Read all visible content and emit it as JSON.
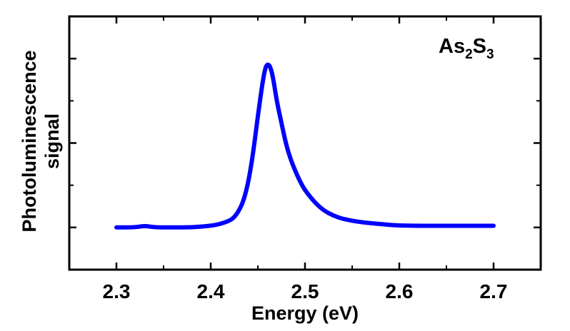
{
  "chart_data": {
    "type": "line",
    "title": "",
    "annotation": {
      "main1": "As",
      "sub1": "2",
      "main2": "S",
      "sub2": "3",
      "full": "As2S3"
    },
    "xlabel": "Energy (eV)",
    "ylabel_line1": "Photoluminescence",
    "ylabel_line2": "signal",
    "xlim": [
      2.25,
      2.75
    ],
    "ylim": [
      -0.25,
      1.25
    ],
    "x_ticks": [
      2.3,
      2.4,
      2.5,
      2.6,
      2.7
    ],
    "x_tick_labels": [
      "2.3",
      "2.4",
      "2.5",
      "2.6",
      "2.7"
    ],
    "y_tick_labels_shown": false,
    "grid": false,
    "legend": null,
    "series": [
      {
        "name": "As2S3 photoluminescence",
        "color": "#0000ff",
        "x": [
          2.3,
          2.32,
          2.33,
          2.34,
          2.36,
          2.38,
          2.4,
          2.41,
          2.42,
          2.425,
          2.43,
          2.435,
          2.44,
          2.445,
          2.45,
          2.455,
          2.458,
          2.461,
          2.464,
          2.467,
          2.47,
          2.475,
          2.48,
          2.485,
          2.49,
          2.495,
          2.5,
          2.51,
          2.52,
          2.53,
          2.54,
          2.56,
          2.58,
          2.6,
          2.65,
          2.7
        ],
        "y": [
          0.0,
          0.0,
          0.01,
          0.0,
          0.0,
          0.0,
          0.01,
          0.02,
          0.04,
          0.06,
          0.1,
          0.16,
          0.27,
          0.44,
          0.66,
          0.86,
          0.95,
          0.97,
          0.94,
          0.86,
          0.75,
          0.62,
          0.49,
          0.4,
          0.33,
          0.27,
          0.22,
          0.15,
          0.1,
          0.07,
          0.05,
          0.03,
          0.02,
          0.01,
          0.01,
          0.01
        ]
      }
    ]
  }
}
